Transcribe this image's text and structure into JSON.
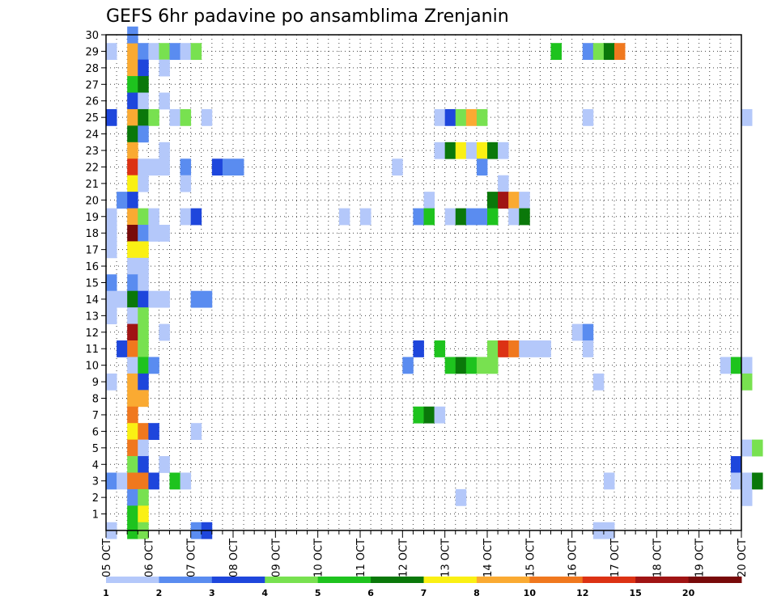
{
  "chart_data": {
    "type": "heatmap",
    "title": "GEFS 6hr padavine po ansamblima Zrenjanin",
    "y_label_values": [
      "30",
      "29",
      "28",
      "27",
      "26",
      "25",
      "24",
      "23",
      "22",
      "21",
      "20",
      "19",
      "18",
      "17",
      "16",
      "15",
      "14",
      "13",
      "12",
      "11",
      "10",
      "9",
      "8",
      "7",
      "6",
      "5",
      "4",
      "3",
      "2",
      "1"
    ],
    "x_date_labels": [
      "05 OCT",
      "06 OCT",
      "07 OCT",
      "08 OCT",
      "09 OCT",
      "10 OCT",
      "11 OCT",
      "12 OCT",
      "13 OCT",
      "14 OCT",
      "15 OCT",
      "16 OCT",
      "17 OCT",
      "18 OCT",
      "19 OCT",
      "20 OCT"
    ],
    "x_range_days": [
      5,
      20
    ],
    "steps_per_day": 4,
    "y_range": [
      0,
      30
    ],
    "grid": "dotted",
    "legend": {
      "position": "bottom",
      "bins": [
        {
          "color": "#b4c8fa",
          "upper": 2
        },
        {
          "color": "#5a8cf0",
          "upper": 3
        },
        {
          "color": "#1e46dc",
          "upper": 4
        },
        {
          "color": "#78e150",
          "upper": 5
        },
        {
          "color": "#1ec31e",
          "upper": 6
        },
        {
          "color": "#0a780a",
          "upper": 7
        },
        {
          "color": "#faf014",
          "upper": 8
        },
        {
          "color": "#faaa32",
          "upper": 10
        },
        {
          "color": "#f0781e",
          "upper": 12
        },
        {
          "color": "#dc3214",
          "upper": 15
        },
        {
          "color": "#a01414",
          "upper": 20
        },
        {
          "color": "#780a0a",
          "upper": 25
        }
      ],
      "labels": [
        {
          "value": 1,
          "text": "1"
        },
        {
          "value": 2,
          "text": "2"
        },
        {
          "value": 3,
          "text": "3"
        },
        {
          "value": 4,
          "text": "4"
        },
        {
          "value": 5,
          "text": "5"
        },
        {
          "value": 6,
          "text": "6"
        },
        {
          "value": 7,
          "text": "7"
        },
        {
          "value": 8,
          "text": "8"
        },
        {
          "value": 10,
          "text": "10"
        },
        {
          "value": 12,
          "text": "12"
        },
        {
          "value": 15,
          "text": "15"
        },
        {
          "value": 20,
          "text": "20"
        }
      ]
    },
    "cells_member_time_index_precip_mm": [
      [
        29,
        0,
        1.5
      ],
      [
        29,
        2,
        9
      ],
      [
        29,
        3,
        2.5
      ],
      [
        29,
        4,
        1.5
      ],
      [
        29,
        5,
        4
      ],
      [
        29,
        6,
        2
      ],
      [
        29,
        7,
        1.5
      ],
      [
        29,
        8,
        4
      ],
      [
        29,
        42,
        5.5
      ],
      [
        29,
        45,
        2.5
      ],
      [
        29,
        46,
        4
      ],
      [
        29,
        47,
        6.5
      ],
      [
        29,
        48,
        11
      ],
      [
        30,
        2,
        2.5
      ],
      [
        28,
        2,
        9
      ],
      [
        28,
        3,
        3.5
      ],
      [
        28,
        5,
        1.5
      ],
      [
        27,
        2,
        5.5
      ],
      [
        27,
        3,
        6.5
      ],
      [
        26,
        2,
        3.5
      ],
      [
        26,
        3,
        1.5
      ],
      [
        26,
        5,
        1.5
      ],
      [
        25,
        0,
        3.5
      ],
      [
        25,
        2,
        9
      ],
      [
        25,
        3,
        6.5
      ],
      [
        25,
        4,
        4.5
      ],
      [
        25,
        6,
        1.5
      ],
      [
        25,
        7,
        4.5
      ],
      [
        25,
        9,
        1.5
      ],
      [
        25,
        31,
        1.5
      ],
      [
        25,
        32,
        3.5
      ],
      [
        25,
        33,
        4.5
      ],
      [
        25,
        34,
        9
      ],
      [
        25,
        35,
        4.5
      ],
      [
        25,
        45,
        1.5
      ],
      [
        25,
        60,
        1.5
      ],
      [
        24,
        2,
        6.5
      ],
      [
        24,
        3,
        2.5
      ],
      [
        23,
        2,
        9
      ],
      [
        23,
        5,
        1.5
      ],
      [
        23,
        31,
        1.5
      ],
      [
        23,
        32,
        6.5
      ],
      [
        23,
        33,
        7.5
      ],
      [
        23,
        34,
        1.5
      ],
      [
        23,
        35,
        7.5
      ],
      [
        23,
        36,
        6.5
      ],
      [
        23,
        37,
        1.5
      ],
      [
        22,
        2,
        13
      ],
      [
        22,
        3,
        1.5
      ],
      [
        22,
        4,
        1.5
      ],
      [
        22,
        5,
        1.5
      ],
      [
        22,
        7,
        2.5
      ],
      [
        22,
        10,
        3.5
      ],
      [
        22,
        11,
        2.5
      ],
      [
        22,
        12,
        2.5
      ],
      [
        22,
        27,
        1.5
      ],
      [
        22,
        35,
        2.5
      ],
      [
        21,
        2,
        7.5
      ],
      [
        21,
        3,
        1.5
      ],
      [
        21,
        7,
        1.5
      ],
      [
        21,
        37,
        1.5
      ],
      [
        20,
        1,
        2.5
      ],
      [
        20,
        2,
        3.5
      ],
      [
        20,
        30,
        1.5
      ],
      [
        20,
        36,
        6.5
      ],
      [
        20,
        37,
        17
      ],
      [
        20,
        38,
        9
      ],
      [
        20,
        39,
        1.5
      ],
      [
        19,
        0,
        1.5
      ],
      [
        19,
        2,
        9
      ],
      [
        19,
        3,
        4.5
      ],
      [
        19,
        4,
        1.5
      ],
      [
        19,
        7,
        1.5
      ],
      [
        19,
        8,
        3.5
      ],
      [
        19,
        22,
        1.5
      ],
      [
        19,
        24,
        1.5
      ],
      [
        19,
        29,
        2.5
      ],
      [
        19,
        30,
        5.5
      ],
      [
        19,
        32,
        1.5
      ],
      [
        19,
        33,
        6.5
      ],
      [
        19,
        34,
        2.5
      ],
      [
        19,
        35,
        2.5
      ],
      [
        19,
        36,
        5.5
      ],
      [
        19,
        38,
        1.5
      ],
      [
        19,
        39,
        6.5
      ],
      [
        18,
        0,
        1.5
      ],
      [
        18,
        2,
        22
      ],
      [
        18,
        3,
        2.5
      ],
      [
        18,
        4,
        1.5
      ],
      [
        18,
        5,
        1.5
      ],
      [
        17,
        0,
        1.5
      ],
      [
        17,
        2,
        7.5
      ],
      [
        17,
        3,
        7.5
      ],
      [
        16,
        2,
        1.5
      ],
      [
        16,
        3,
        1.5
      ],
      [
        15,
        0,
        2.5
      ],
      [
        15,
        2,
        2.5
      ],
      [
        15,
        3,
        1.5
      ],
      [
        14,
        0,
        1.5
      ],
      [
        14,
        1,
        1.5
      ],
      [
        14,
        2,
        6.5
      ],
      [
        14,
        3,
        3.5
      ],
      [
        14,
        4,
        1.5
      ],
      [
        14,
        5,
        1.5
      ],
      [
        14,
        8,
        2.5
      ],
      [
        14,
        9,
        2.5
      ],
      [
        13,
        0,
        1.5
      ],
      [
        13,
        2,
        1.5
      ],
      [
        13,
        3,
        4.5
      ],
      [
        12,
        2,
        17
      ],
      [
        12,
        3,
        4.5
      ],
      [
        12,
        5,
        1.5
      ],
      [
        12,
        44,
        1.5
      ],
      [
        12,
        45,
        2.5
      ],
      [
        11,
        1,
        3.5
      ],
      [
        11,
        2,
        11
      ],
      [
        11,
        3,
        4.5
      ],
      [
        11,
        29,
        3.5
      ],
      [
        11,
        31,
        5.5
      ],
      [
        11,
        36,
        4.5
      ],
      [
        11,
        37,
        13
      ],
      [
        11,
        38,
        11
      ],
      [
        11,
        39,
        1.5
      ],
      [
        11,
        40,
        1.5
      ],
      [
        11,
        41,
        1.5
      ],
      [
        11,
        45,
        1.5
      ],
      [
        10,
        2,
        1.5
      ],
      [
        10,
        3,
        5.5
      ],
      [
        10,
        4,
        2.5
      ],
      [
        10,
        28,
        2.5
      ],
      [
        10,
        32,
        5.5
      ],
      [
        10,
        33,
        6.5
      ],
      [
        10,
        34,
        5.5
      ],
      [
        10,
        35,
        4.5
      ],
      [
        10,
        36,
        4.5
      ],
      [
        10,
        58,
        1.5
      ],
      [
        10,
        59,
        5.5
      ],
      [
        10,
        60,
        1.5
      ],
      [
        9,
        0,
        1.5
      ],
      [
        9,
        2,
        9
      ],
      [
        9,
        3,
        3.5
      ],
      [
        9,
        46,
        1.5
      ],
      [
        9,
        60,
        4.5
      ],
      [
        8,
        2,
        9
      ],
      [
        8,
        3,
        9
      ],
      [
        7,
        2,
        11
      ],
      [
        7,
        29,
        5.5
      ],
      [
        7,
        30,
        6.5
      ],
      [
        7,
        31,
        1.5
      ],
      [
        6,
        2,
        7.5
      ],
      [
        6,
        3,
        11
      ],
      [
        6,
        4,
        3.5
      ],
      [
        6,
        8,
        1.5
      ],
      [
        5,
        2,
        11
      ],
      [
        5,
        3,
        1.5
      ],
      [
        5,
        60,
        1.5
      ],
      [
        5,
        61,
        4.5
      ],
      [
        4,
        2,
        4.5
      ],
      [
        4,
        3,
        3.5
      ],
      [
        4,
        5,
        1.5
      ],
      [
        4,
        59,
        3.5
      ],
      [
        3,
        0,
        2.5
      ],
      [
        3,
        1,
        1.5
      ],
      [
        3,
        2,
        11
      ],
      [
        3,
        3,
        11
      ],
      [
        3,
        4,
        3.5
      ],
      [
        3,
        6,
        5.5
      ],
      [
        3,
        7,
        1.5
      ],
      [
        3,
        47,
        1.5
      ],
      [
        3,
        59,
        1.5
      ],
      [
        3,
        60,
        1.5
      ],
      [
        3,
        61,
        6.5
      ],
      [
        2,
        2,
        2.5
      ],
      [
        2,
        3,
        4.5
      ],
      [
        2,
        33,
        1.5
      ],
      [
        2,
        60,
        1.5
      ],
      [
        1,
        2,
        5.5
      ],
      [
        1,
        3,
        7.5
      ],
      [
        0,
        0,
        1.5
      ],
      [
        0,
        2,
        5.5
      ],
      [
        0,
        3,
        4.5
      ],
      [
        0,
        8,
        2.5
      ],
      [
        0,
        9,
        3.5
      ],
      [
        0,
        46,
        1.5
      ],
      [
        0,
        47,
        1.5
      ]
    ]
  }
}
